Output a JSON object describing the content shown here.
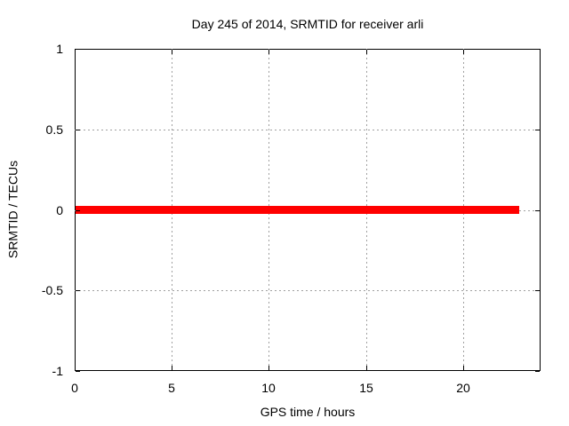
{
  "chart_data": {
    "type": "line",
    "title": "Day 245 of 2014, SRMTID for receiver arli",
    "xlabel": "GPS time / hours",
    "ylabel": "SRMTID / TECUs",
    "xlim": [
      0,
      24
    ],
    "ylim": [
      -1,
      1
    ],
    "x_ticks": {
      "values": [
        0,
        5,
        10,
        15,
        20
      ],
      "labels": [
        "0",
        "5",
        "10",
        "15",
        "20"
      ]
    },
    "y_ticks": {
      "values": [
        -1,
        -0.5,
        0,
        0.5,
        1
      ],
      "labels": [
        "-1",
        "-0.5",
        "0",
        "0.5",
        "1"
      ]
    },
    "grid": true,
    "grid_style": "dashed",
    "legend": "none",
    "series": [
      {
        "name": "SRMTID",
        "y": 0,
        "x_start": 0,
        "x_end": 22.9,
        "color": "#ff0000",
        "thickness_px": 9
      }
    ],
    "colors": {
      "axis": "#000000",
      "grid": "#a0a0a0",
      "background": "#ffffff",
      "text": "#000000"
    }
  }
}
